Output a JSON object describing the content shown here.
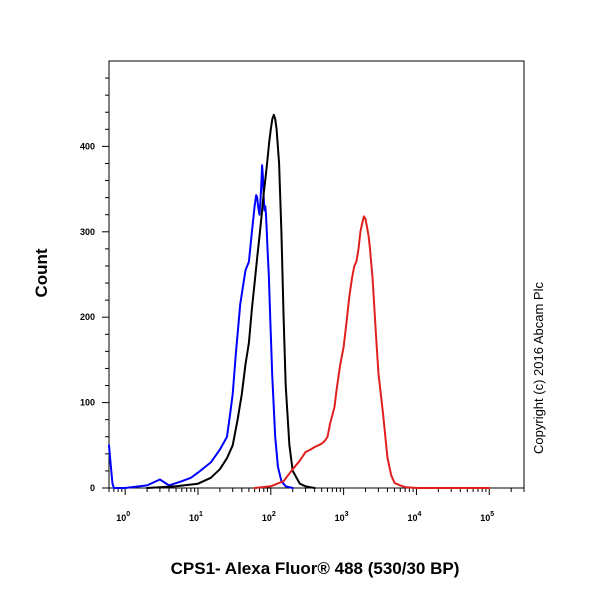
{
  "chart_data": {
    "type": "line",
    "title": "",
    "xlabel": "CPS1- Alexa Fluor® 488 (530/30 BP)",
    "ylabel": "Count",
    "x_scale": "log",
    "xlim": [
      0.6,
      300000
    ],
    "ylim": [
      0,
      500
    ],
    "x_ticks": [
      {
        "value": 1,
        "base": "10",
        "exp": "0"
      },
      {
        "value": 10,
        "base": "10",
        "exp": "1"
      },
      {
        "value": 100,
        "base": "10",
        "exp": "2"
      },
      {
        "value": 1000,
        "base": "10",
        "exp": "3"
      },
      {
        "value": 10000,
        "base": "10",
        "exp": "4"
      },
      {
        "value": 100000,
        "base": "10",
        "exp": "5"
      }
    ],
    "y_ticks": [
      {
        "value": 0,
        "label": "0"
      },
      {
        "value": 100,
        "label": "100"
      },
      {
        "value": 200,
        "label": "200"
      },
      {
        "value": 300,
        "label": "300"
      },
      {
        "value": 400,
        "label": "400"
      }
    ],
    "grid": false,
    "legend": "none",
    "copyright": "Copyright (c) 2016 Abcam Plc",
    "series": [
      {
        "color": "#0000ff",
        "x": [
          0.6,
          0.63,
          0.67,
          0.7,
          0.8,
          1,
          2,
          3,
          4,
          6,
          8,
          10,
          15,
          20,
          25,
          28,
          30,
          33,
          38,
          45,
          50,
          55,
          60,
          63,
          65,
          67,
          70,
          72,
          74,
          76,
          78,
          80,
          82,
          84,
          86,
          88,
          90,
          94,
          98,
          105,
          115,
          125,
          140,
          160,
          200
        ],
        "y": [
          50,
          30,
          5,
          0,
          0,
          0,
          3,
          10,
          3,
          8,
          12,
          18,
          30,
          45,
          60,
          90,
          110,
          155,
          215,
          255,
          265,
          300,
          330,
          343,
          340,
          330,
          320,
          335,
          355,
          378,
          365,
          340,
          325,
          330,
          320,
          300,
          280,
          250,
          200,
          130,
          60,
          25,
          8,
          2,
          0
        ]
      },
      {
        "color": "#000000",
        "x": [
          2,
          5,
          10,
          15,
          20,
          25,
          30,
          35,
          40,
          45,
          50,
          55,
          60,
          65,
          70,
          75,
          80,
          85,
          90,
          95,
          100,
          105,
          110,
          115,
          120,
          130,
          140,
          150,
          160,
          180,
          200,
          250,
          300,
          400
        ],
        "y": [
          0,
          2,
          5,
          12,
          22,
          35,
          50,
          80,
          110,
          145,
          170,
          210,
          240,
          270,
          295,
          320,
          345,
          365,
          385,
          405,
          420,
          432,
          437,
          432,
          420,
          380,
          300,
          200,
          120,
          50,
          20,
          5,
          2,
          0
        ]
      },
      {
        "color": "#e0201e",
        "x": [
          60,
          100,
          150,
          200,
          250,
          300,
          350,
          400,
          450,
          500,
          550,
          600,
          650,
          700,
          750,
          800,
          900,
          1000,
          1100,
          1200,
          1300,
          1400,
          1500,
          1600,
          1700,
          1800,
          1900,
          2000,
          2100,
          2200,
          2300,
          2500,
          2800,
          3000,
          3500,
          4000,
          4500,
          5000,
          6000,
          7000,
          10000,
          100000
        ],
        "y": [
          0,
          2,
          8,
          22,
          32,
          42,
          45,
          48,
          50,
          52,
          55,
          60,
          75,
          85,
          95,
          115,
          145,
          165,
          195,
          225,
          245,
          260,
          265,
          280,
          300,
          310,
          318,
          315,
          305,
          295,
          280,
          245,
          175,
          135,
          85,
          35,
          15,
          6,
          3,
          1,
          0,
          0
        ]
      }
    ]
  }
}
